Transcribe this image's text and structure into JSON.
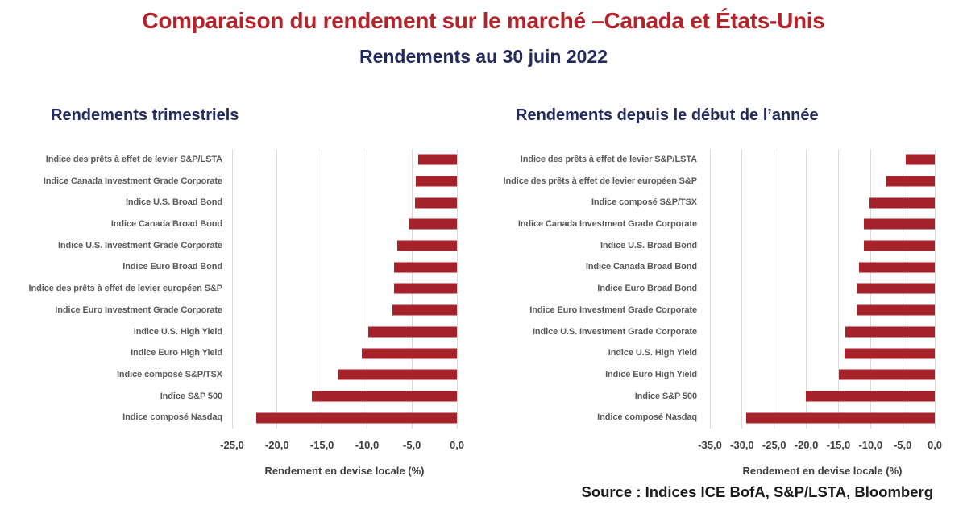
{
  "page": {
    "title": "Comparaison du rendement sur le marché –Canada et États-Unis",
    "subtitle": "Rendements au 30 juin 2022",
    "source": "Source : Indices ICE BofA, S&P/LSTA, Bloomberg"
  },
  "colors": {
    "title_red": "#b4232a",
    "heading_navy": "#222a60",
    "bar_red": "#a6222b",
    "category_label_gray": "#595959",
    "axis_text_gray": "#3d3d3d",
    "gridline_gray": "#d9d9d9",
    "source_black": "#1a1a1a"
  },
  "chart_data": [
    {
      "type": "bar",
      "orientation": "horizontal",
      "title": "Rendements trimestriels",
      "xlabel": "Rendement en devise locale (%)",
      "xlim": [
        -25,
        0
      ],
      "grid": true,
      "legend": false,
      "bar_color": "#a6222b",
      "tick_values": [
        -25,
        -20,
        -15,
        -10,
        -5,
        0
      ],
      "ticks": [
        "-25,0",
        "-20,0",
        "-15,0",
        "-10,0",
        "-5,0",
        "0,0"
      ],
      "categories": [
        "Indice des prêts à effet de levier S&P/LSTA",
        "Indice Canada Investment Grade Corporate",
        "Indice U.S. Broad Bond",
        "Indice Canada Broad Bond",
        "Indice U.S. Investment Grade Corporate",
        "Indice Euro Broad Bond",
        "Indice des prêts à effet de levier européen S&P",
        "Indice Euro Investment Grade Corporate",
        "Indice U.S. High Yield",
        "Indice Euro High Yield",
        "Indice composé S&P/TSX",
        "Indice S&P 500",
        "Indice composé Nasdaq"
      ],
      "values": [
        -4.3,
        -4.6,
        -4.7,
        -5.4,
        -6.6,
        -7.0,
        -7.0,
        -7.2,
        -9.9,
        -10.6,
        -13.3,
        -16.1,
        -22.3
      ]
    },
    {
      "type": "bar",
      "orientation": "horizontal",
      "title": "Rendements depuis le début de l’année",
      "xlabel": "Rendement en devise locale (%)",
      "xlim": [
        -35,
        0
      ],
      "grid": true,
      "legend": false,
      "bar_color": "#a6222b",
      "tick_values": [
        -35,
        -30,
        -25,
        -20,
        -15,
        -10,
        -5,
        0
      ],
      "ticks": [
        "-35,0",
        "-30,0",
        "-25,0",
        "-20,0",
        "-15,0",
        "-10,0",
        "-5,0",
        "0,0"
      ],
      "categories": [
        "Indice des prêts à effet de levier S&P/LSTA",
        "Indice des prêts à effet de levier européen S&P",
        "Indice composé S&P/TSX",
        "Indice Canada Investment Grade Corporate",
        "Indice U.S. Broad Bond",
        "Indice Canada Broad Bond",
        "Indice Euro Broad Bond",
        "Indice Euro Investment Grade Corporate",
        "Indice U.S. Investment Grade Corporate",
        "Indice U.S. High Yield",
        "Indice Euro High Yield",
        "Indice S&P 500",
        "Indice composé Nasdaq"
      ],
      "values": [
        -4.5,
        -7.5,
        -10.2,
        -11.0,
        -11.0,
        -11.8,
        -12.2,
        -12.2,
        -13.9,
        -14.1,
        -14.9,
        -20.1,
        -29.3
      ]
    }
  ]
}
